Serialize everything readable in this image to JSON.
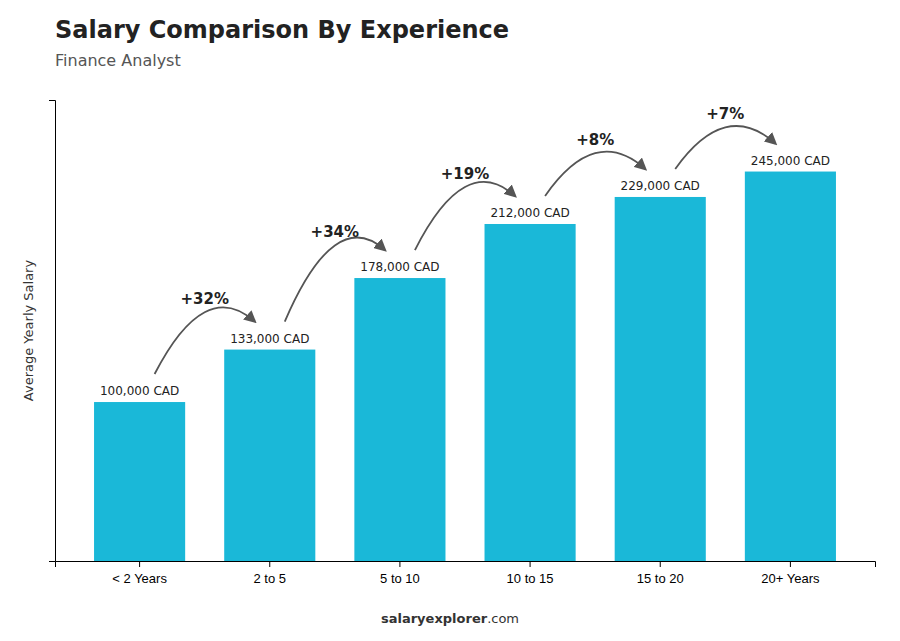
{
  "chart_data": {
    "type": "bar",
    "title": "Salary Comparison By Experience",
    "subtitle": "Finance Analyst",
    "ylabel": "Average Yearly Salary",
    "categories": [
      "< 2 Years",
      "2 to 5",
      "5 to 10",
      "10 to 15",
      "15 to 20",
      "20+ Years"
    ],
    "values": [
      100000,
      133000,
      178000,
      212000,
      229000,
      245000
    ],
    "value_labels": [
      "100,000 CAD",
      "133,000 CAD",
      "178,000 CAD",
      "212,000 CAD",
      "229,000 CAD",
      "245,000 CAD"
    ],
    "data_labels": true,
    "annotations": [
      "+32%",
      "+34%",
      "+19%",
      "+8%",
      "+7%"
    ],
    "footer": [
      "salaryexplorer",
      ".com"
    ],
    "color": "#1ab8d8",
    "ylim": [
      0,
      290000
    ],
    "tick_labels": "x",
    "grid": false
  }
}
